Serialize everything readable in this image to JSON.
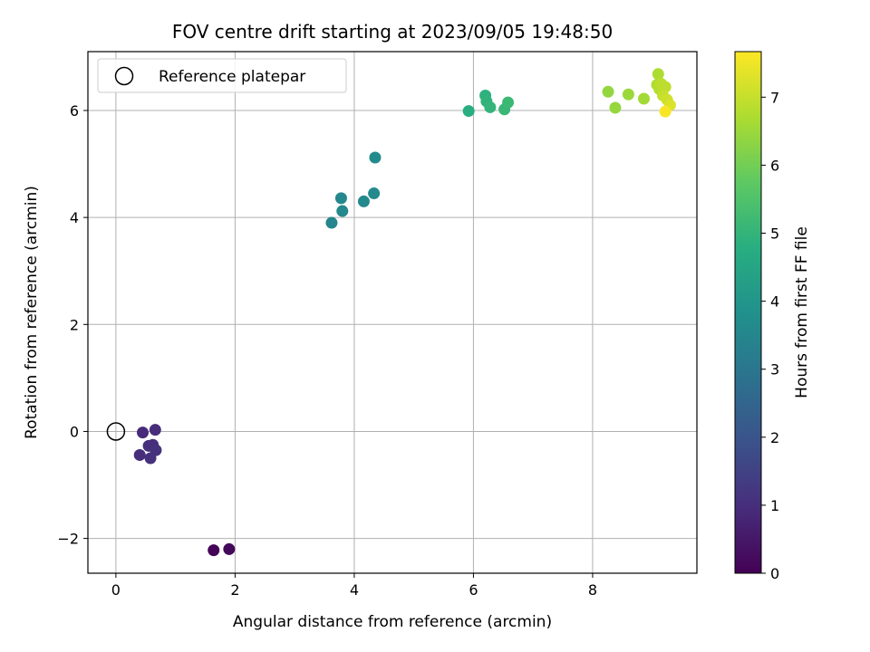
{
  "chart_data": {
    "type": "scatter",
    "title": "FOV centre drift starting at 2023/09/05 19:48:50",
    "xlabel": "Angular distance from reference (arcmin)",
    "ylabel": "Rotation from reference (arcmin)",
    "xlim": [
      -0.47,
      9.75
    ],
    "ylim": [
      -2.65,
      7.1
    ],
    "xticks": [
      0,
      2,
      4,
      6,
      8
    ],
    "yticks": [
      -2,
      0,
      2,
      4,
      6
    ],
    "xtick_labels": [
      "0",
      "2",
      "4",
      "6",
      "8"
    ],
    "ytick_labels": [
      "−2",
      "0",
      "2",
      "4",
      "6"
    ],
    "grid": true,
    "legend": {
      "position": "top-left",
      "label": "Reference platepar"
    },
    "reference_point": {
      "x": 0,
      "y": 0
    },
    "colorbar": {
      "label": "Hours from first FF file",
      "colormap": "viridis",
      "range": [
        0,
        7.67
      ],
      "ticks": [
        0,
        1,
        2,
        3,
        4,
        5,
        6,
        7
      ],
      "tick_labels": [
        "0",
        "1",
        "2",
        "3",
        "4",
        "5",
        "6",
        "7"
      ]
    },
    "points": [
      {
        "x": 1.64,
        "y": -2.22,
        "hours": 0.05
      },
      {
        "x": 1.9,
        "y": -2.2,
        "hours": 0.15
      },
      {
        "x": 0.45,
        "y": -0.02,
        "hours": 0.9
      },
      {
        "x": 0.66,
        "y": 0.03,
        "hours": 0.95
      },
      {
        "x": 0.4,
        "y": -0.44,
        "hours": 0.95
      },
      {
        "x": 0.55,
        "y": -0.27,
        "hours": 1.0
      },
      {
        "x": 0.62,
        "y": -0.25,
        "hours": 1.0
      },
      {
        "x": 0.67,
        "y": -0.35,
        "hours": 1.05
      },
      {
        "x": 0.58,
        "y": -0.5,
        "hours": 1.05
      },
      {
        "x": 3.62,
        "y": 3.9,
        "hours": 3.5
      },
      {
        "x": 3.8,
        "y": 4.12,
        "hours": 3.55
      },
      {
        "x": 3.78,
        "y": 4.36,
        "hours": 3.55
      },
      {
        "x": 4.16,
        "y": 4.3,
        "hours": 3.6
      },
      {
        "x": 4.33,
        "y": 4.45,
        "hours": 3.6
      },
      {
        "x": 4.35,
        "y": 5.12,
        "hours": 3.65
      },
      {
        "x": 5.92,
        "y": 5.99,
        "hours": 4.8
      },
      {
        "x": 6.2,
        "y": 6.28,
        "hours": 4.9
      },
      {
        "x": 6.22,
        "y": 6.17,
        "hours": 4.95
      },
      {
        "x": 6.28,
        "y": 6.06,
        "hours": 5.0
      },
      {
        "x": 6.52,
        "y": 6.02,
        "hours": 5.1
      },
      {
        "x": 6.58,
        "y": 6.15,
        "hours": 5.15
      },
      {
        "x": 8.26,
        "y": 6.35,
        "hours": 6.4
      },
      {
        "x": 8.38,
        "y": 6.05,
        "hours": 6.45
      },
      {
        "x": 8.6,
        "y": 6.3,
        "hours": 6.5
      },
      {
        "x": 8.86,
        "y": 6.22,
        "hours": 6.6
      },
      {
        "x": 9.1,
        "y": 6.68,
        "hours": 6.7
      },
      {
        "x": 9.08,
        "y": 6.48,
        "hours": 6.75
      },
      {
        "x": 9.12,
        "y": 6.4,
        "hours": 6.8
      },
      {
        "x": 9.15,
        "y": 6.5,
        "hours": 6.85
      },
      {
        "x": 9.22,
        "y": 6.44,
        "hours": 6.9
      },
      {
        "x": 9.18,
        "y": 6.28,
        "hours": 7.0
      },
      {
        "x": 9.25,
        "y": 6.2,
        "hours": 7.1
      },
      {
        "x": 9.3,
        "y": 6.1,
        "hours": 7.25
      },
      {
        "x": 9.22,
        "y": 5.98,
        "hours": 7.6
      }
    ]
  }
}
